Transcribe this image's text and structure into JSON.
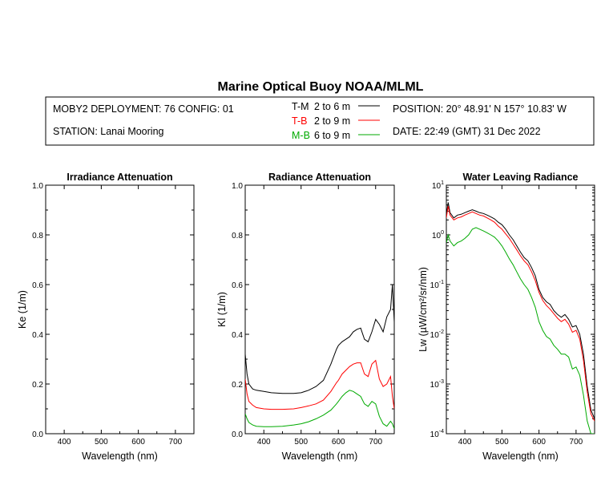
{
  "header": {
    "title": "Marine Optical Buoy NOAA/MLML",
    "deployment": "MOBY2 DEPLOYMENT: 76 CONFIG: 01",
    "station": "STATION: Lanai Mooring",
    "position": "POSITION: 20° 48.91' N   157° 10.83' W",
    "date": "DATE: 22:49 (GMT) 31 Dec 2022",
    "legend": [
      {
        "code": "T-M",
        "range": "2 to 6  m",
        "color": "#000000"
      },
      {
        "code": "T-B",
        "range": "2 to 9  m",
        "color": "#ff0000"
      },
      {
        "code": "M-B",
        "range": "6 to 9  m",
        "color": "#00aa00"
      }
    ]
  },
  "colors": {
    "tm": "#000000",
    "tb": "#ff0000",
    "mb": "#00aa00",
    "axis": "#000000"
  },
  "chart_data": [
    {
      "type": "line",
      "title": "Irradiance Attenuation",
      "xlabel": "Wavelength (nm)",
      "ylabel": "Ke  (1/m)",
      "xlim": [
        350,
        750
      ],
      "ylim": [
        0,
        1
      ],
      "xticks": [
        400,
        500,
        600,
        700
      ],
      "yticks": [
        0.0,
        0.2,
        0.4,
        0.6,
        0.8,
        1.0
      ],
      "ytick_labels": [
        "0.0",
        "0.2",
        "0.4",
        "0.6",
        "0.8",
        "1.0"
      ],
      "series": []
    },
    {
      "type": "line",
      "title": "Radiance Attenuation",
      "xlabel": "Wavelength (nm)",
      "ylabel": "Kl  (1/m)",
      "xlim": [
        350,
        750
      ],
      "ylim": [
        0,
        1
      ],
      "xticks": [
        400,
        500,
        600,
        700
      ],
      "yticks": [
        0.0,
        0.2,
        0.4,
        0.6,
        0.8,
        1.0
      ],
      "ytick_labels": [
        "0.0",
        "0.2",
        "0.4",
        "0.6",
        "0.8",
        "1.0"
      ],
      "series": [
        {
          "name": "T-M",
          "color": "#000000",
          "x": [
            350,
            355,
            360,
            370,
            380,
            400,
            420,
            450,
            480,
            500,
            520,
            540,
            560,
            580,
            595,
            600,
            610,
            620,
            630,
            640,
            650,
            660,
            670,
            680,
            690,
            700,
            710,
            720,
            730,
            740,
            745,
            750
          ],
          "y": [
            0.32,
            0.24,
            0.2,
            0.18,
            0.175,
            0.17,
            0.165,
            0.162,
            0.162,
            0.165,
            0.175,
            0.19,
            0.215,
            0.28,
            0.34,
            0.355,
            0.37,
            0.38,
            0.39,
            0.41,
            0.42,
            0.425,
            0.38,
            0.37,
            0.41,
            0.46,
            0.44,
            0.41,
            0.47,
            0.5,
            0.6,
            0.45
          ]
        },
        {
          "name": "T-B",
          "color": "#ff0000",
          "x": [
            350,
            355,
            360,
            370,
            380,
            400,
            420,
            450,
            480,
            500,
            520,
            540,
            560,
            580,
            595,
            600,
            610,
            620,
            630,
            640,
            650,
            660,
            670,
            680,
            690,
            700,
            710,
            720,
            730,
            740,
            745,
            750
          ],
          "y": [
            0.22,
            0.16,
            0.13,
            0.115,
            0.105,
            0.1,
            0.098,
            0.098,
            0.1,
            0.105,
            0.112,
            0.12,
            0.135,
            0.17,
            0.205,
            0.215,
            0.24,
            0.255,
            0.27,
            0.28,
            0.285,
            0.285,
            0.24,
            0.23,
            0.28,
            0.295,
            0.22,
            0.19,
            0.2,
            0.23,
            0.15,
            0.1
          ]
        },
        {
          "name": "M-B",
          "color": "#00aa00",
          "x": [
            350,
            355,
            360,
            370,
            380,
            400,
            420,
            450,
            480,
            500,
            520,
            540,
            560,
            580,
            595,
            600,
            610,
            620,
            630,
            640,
            650,
            660,
            670,
            680,
            690,
            700,
            710,
            720,
            730,
            740,
            745,
            750
          ],
          "y": [
            0.08,
            0.06,
            0.045,
            0.035,
            0.03,
            0.028,
            0.028,
            0.03,
            0.035,
            0.04,
            0.048,
            0.06,
            0.075,
            0.095,
            0.12,
            0.13,
            0.15,
            0.165,
            0.175,
            0.17,
            0.16,
            0.15,
            0.12,
            0.11,
            0.13,
            0.12,
            0.07,
            0.04,
            0.03,
            0.05,
            0.04,
            0.02
          ]
        }
      ]
    },
    {
      "type": "line",
      "title": "Water Leaving Radiance",
      "xlabel": "Wavelength (nm)",
      "ylabel": "Lw  (µW/cm²/sr/nm)",
      "yscale": "log",
      "xlim": [
        350,
        750
      ],
      "ylim": [
        0.0001,
        10
      ],
      "xticks": [
        400,
        500,
        600,
        700
      ],
      "yticks": [
        0.0001,
        0.001,
        0.01,
        0.1,
        1,
        10
      ],
      "ytick_exponents": [
        "-4",
        "-3",
        "-2",
        "-1",
        "0",
        "1"
      ],
      "series": [
        {
          "name": "T-M",
          "color": "#000000",
          "x": [
            350,
            355,
            360,
            370,
            380,
            390,
            400,
            410,
            420,
            430,
            440,
            450,
            460,
            470,
            480,
            490,
            500,
            510,
            520,
            530,
            540,
            550,
            560,
            570,
            580,
            590,
            600,
            610,
            620,
            630,
            640,
            650,
            660,
            670,
            680,
            690,
            700,
            710,
            720,
            730,
            740,
            750
          ],
          "y": [
            2.5,
            4.5,
            2.8,
            2.2,
            2.5,
            2.6,
            2.8,
            3.0,
            3.2,
            3.0,
            2.8,
            2.7,
            2.5,
            2.3,
            2.1,
            1.8,
            1.6,
            1.3,
            1.0,
            0.8,
            0.6,
            0.45,
            0.35,
            0.3,
            0.22,
            0.15,
            0.08,
            0.055,
            0.045,
            0.04,
            0.03,
            0.025,
            0.022,
            0.025,
            0.02,
            0.014,
            0.015,
            0.01,
            0.004,
            0.0009,
            0.0003,
            0.0002
          ]
        },
        {
          "name": "T-B",
          "color": "#ff0000",
          "x": [
            350,
            355,
            360,
            370,
            380,
            390,
            400,
            410,
            420,
            430,
            440,
            450,
            460,
            470,
            480,
            490,
            500,
            510,
            520,
            530,
            540,
            550,
            560,
            570,
            580,
            590,
            600,
            610,
            620,
            630,
            640,
            650,
            660,
            670,
            680,
            690,
            700,
            710,
            720,
            730,
            740,
            750
          ],
          "y": [
            2.2,
            3.8,
            2.5,
            2.0,
            2.2,
            2.3,
            2.5,
            2.7,
            2.9,
            2.7,
            2.5,
            2.4,
            2.2,
            2.0,
            1.8,
            1.5,
            1.3,
            1.05,
            0.85,
            0.65,
            0.5,
            0.38,
            0.3,
            0.25,
            0.18,
            0.12,
            0.07,
            0.048,
            0.038,
            0.032,
            0.026,
            0.021,
            0.018,
            0.02,
            0.016,
            0.011,
            0.012,
            0.008,
            0.003,
            0.0007,
            0.00025,
            0.00018
          ]
        },
        {
          "name": "M-B",
          "color": "#00aa00",
          "x": [
            350,
            355,
            360,
            370,
            380,
            390,
            400,
            410,
            420,
            430,
            440,
            450,
            460,
            470,
            480,
            490,
            500,
            510,
            520,
            530,
            540,
            550,
            560,
            570,
            580,
            590,
            600,
            610,
            620,
            630,
            640,
            650,
            660,
            670,
            680,
            690,
            700,
            710,
            720,
            730,
            740,
            750
          ],
          "y": [
            0.7,
            1.0,
            0.75,
            0.6,
            0.7,
            0.75,
            0.85,
            1.0,
            1.3,
            1.4,
            1.3,
            1.2,
            1.1,
            1.0,
            0.9,
            0.75,
            0.6,
            0.45,
            0.33,
            0.25,
            0.18,
            0.13,
            0.1,
            0.08,
            0.055,
            0.035,
            0.018,
            0.012,
            0.009,
            0.008,
            0.006,
            0.005,
            0.004,
            0.004,
            0.0035,
            0.002,
            0.0022,
            0.0015,
            0.0006,
            0.00018,
            0.0001,
            0.0001
          ]
        }
      ]
    }
  ]
}
